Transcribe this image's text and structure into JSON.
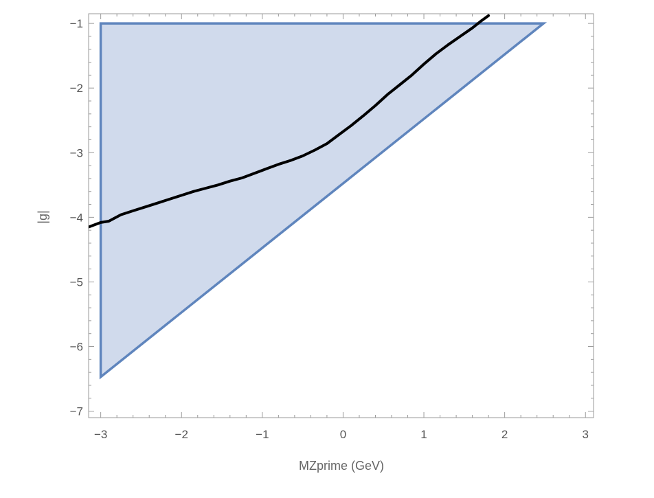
{
  "chart_data": {
    "type": "area",
    "title": "",
    "xlabel": "MZprime (GeV)",
    "ylabel": "|g|",
    "xlim": [
      -3.15,
      3.1
    ],
    "ylim": [
      -7.1,
      -0.85
    ],
    "xticks": [
      -3,
      -2,
      -1,
      0,
      1,
      2,
      3
    ],
    "xtick_labels": [
      "−3",
      "−2",
      "−1",
      "0",
      "1",
      "2",
      "3"
    ],
    "yticks": [
      -1,
      -2,
      -3,
      -4,
      -5,
      -6,
      -7
    ],
    "ytick_labels": [
      "−1",
      "−2",
      "−3",
      "−4",
      "−5",
      "−6",
      "−7"
    ],
    "grid": false,
    "frame": "box",
    "series": [
      {
        "kind": "region",
        "x": [
          -3.0,
          2.48,
          -3.0
        ],
        "y": [
          -1.0,
          -1.0,
          -6.47
        ],
        "fill": "#d0daec",
        "stroke": "#5f85bd"
      },
      {
        "kind": "line",
        "x": [
          -3.15,
          -3.0,
          -2.9,
          -2.75,
          -2.6,
          -2.45,
          -2.3,
          -2.15,
          -2.0,
          -1.85,
          -1.7,
          -1.55,
          -1.4,
          -1.25,
          -1.1,
          -0.95,
          -0.8,
          -0.65,
          -0.5,
          -0.35,
          -0.2,
          -0.05,
          0.1,
          0.25,
          0.4,
          0.55,
          0.7,
          0.85,
          1.0,
          1.15,
          1.3,
          1.45,
          1.6,
          1.7,
          1.8
        ],
        "y": [
          -4.15,
          -4.08,
          -4.06,
          -3.96,
          -3.9,
          -3.84,
          -3.78,
          -3.72,
          -3.66,
          -3.6,
          -3.55,
          -3.5,
          -3.44,
          -3.39,
          -3.32,
          -3.25,
          -3.18,
          -3.12,
          -3.05,
          -2.96,
          -2.86,
          -2.72,
          -2.58,
          -2.43,
          -2.27,
          -2.1,
          -1.95,
          -1.8,
          -1.63,
          -1.47,
          -1.33,
          -1.2,
          -1.07,
          -0.97,
          -0.88
        ],
        "stroke": "#000000"
      }
    ]
  }
}
